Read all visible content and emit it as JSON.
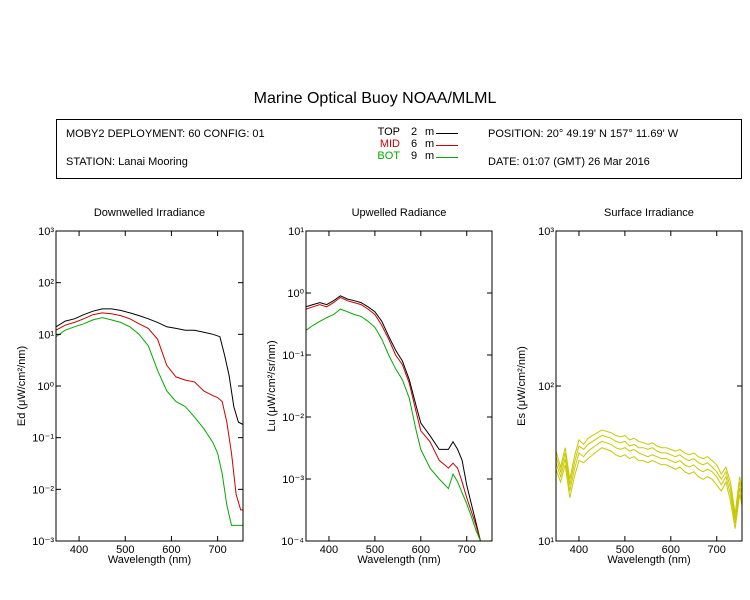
{
  "title": "Marine Optical Buoy NOAA/MLML",
  "info": {
    "deployment": "MOBY2 DEPLOYMENT: 60 CONFIG: 01",
    "station": "STATION: Lanai Mooring",
    "position": "POSITION: 20° 49.19' N   157° 11.69' W",
    "date": "DATE: 01:07 (GMT) 26 Mar 2016"
  },
  "legend": [
    {
      "label": "TOP",
      "depth": "2",
      "unit": "m",
      "color": "#000000"
    },
    {
      "label": "MID",
      "depth": "6",
      "unit": "m",
      "color": "#cc0000"
    },
    {
      "label": "BOT",
      "depth": "9",
      "unit": "m",
      "color": "#00aa00"
    }
  ],
  "chart_data": [
    {
      "type": "line",
      "title": "Downwelled Irradiance",
      "xlabel": "Wavelength (nm)",
      "ylabel": "Ed  (μW/cm²/nm)",
      "yscale": "log",
      "xlim": [
        350,
        755
      ],
      "ylim": [
        0.001,
        1000
      ],
      "xticks": [
        400,
        500,
        600,
        700
      ],
      "yticks": [
        "10⁻³",
        "10⁻²",
        "10⁻¹",
        "10⁰",
        "10¹",
        "10²",
        "10³"
      ],
      "series": [
        {
          "name": "TOP",
          "color": "#000000",
          "x": [
            350,
            370,
            390,
            410,
            430,
            450,
            470,
            490,
            510,
            530,
            550,
            570,
            590,
            610,
            630,
            650,
            670,
            690,
            705,
            715,
            725,
            735,
            745,
            755
          ],
          "y": [
            14,
            18,
            20,
            24,
            28,
            31,
            31,
            29,
            26,
            23,
            20,
            17,
            14,
            13,
            12,
            12,
            11,
            10,
            9,
            4,
            1.6,
            0.4,
            0.2,
            0.18
          ]
        },
        {
          "name": "MID",
          "color": "#cc0000",
          "x": [
            350,
            370,
            390,
            410,
            430,
            450,
            470,
            490,
            510,
            530,
            550,
            570,
            590,
            610,
            630,
            650,
            670,
            690,
            700,
            710,
            720,
            730,
            740,
            750,
            755
          ],
          "y": [
            12,
            15,
            17,
            20,
            24,
            26,
            25,
            23,
            20,
            16,
            13,
            8,
            2.5,
            1.5,
            1.3,
            1.2,
            0.8,
            0.65,
            0.6,
            0.5,
            0.2,
            0.05,
            0.008,
            0.004,
            0.004
          ]
        },
        {
          "name": "BOT",
          "color": "#00aa00",
          "x": [
            350,
            370,
            390,
            410,
            430,
            450,
            470,
            490,
            510,
            530,
            550,
            570,
            590,
            610,
            630,
            650,
            670,
            690,
            700,
            710,
            720,
            730,
            740,
            750,
            755
          ],
          "y": [
            9,
            12,
            14,
            16,
            19,
            21,
            19,
            17,
            14,
            10,
            6,
            2,
            0.8,
            0.5,
            0.4,
            0.25,
            0.15,
            0.08,
            0.05,
            0.02,
            0.005,
            0.002,
            0.002,
            0.002,
            0.002
          ]
        }
      ]
    },
    {
      "type": "line",
      "title": "Upwelled Radiance",
      "xlabel": "Wavelength (nm)",
      "ylabel": "Lu  (μW/cm²/sr/nm)",
      "yscale": "log",
      "xlim": [
        350,
        755
      ],
      "ylim": [
        0.0001,
        10
      ],
      "xticks": [
        400,
        500,
        600,
        700
      ],
      "yticks": [
        "10⁻⁴",
        "10⁻³",
        "10⁻²",
        "10⁻¹",
        "10⁰",
        "10¹"
      ],
      "series": [
        {
          "name": "TOP",
          "color": "#000000",
          "x": [
            350,
            365,
            380,
            395,
            410,
            425,
            440,
            455,
            470,
            485,
            500,
            515,
            530,
            545,
            560,
            575,
            590,
            600,
            620,
            640,
            660,
            670,
            680,
            690,
            700,
            710,
            720,
            730,
            740
          ],
          "y": [
            0.6,
            0.65,
            0.7,
            0.65,
            0.75,
            0.9,
            0.8,
            0.75,
            0.7,
            0.6,
            0.5,
            0.35,
            0.2,
            0.12,
            0.08,
            0.04,
            0.015,
            0.008,
            0.005,
            0.003,
            0.003,
            0.004,
            0.003,
            0.002,
            0.0008,
            0.0004,
            0.0002,
            0.0001,
            0.0001
          ]
        },
        {
          "name": "MID",
          "color": "#cc0000",
          "x": [
            350,
            365,
            380,
            395,
            410,
            425,
            440,
            455,
            470,
            485,
            500,
            515,
            530,
            545,
            560,
            575,
            590,
            600,
            620,
            640,
            660,
            670,
            680,
            690,
            700,
            710,
            720,
            730,
            740
          ],
          "y": [
            0.55,
            0.6,
            0.65,
            0.6,
            0.7,
            0.85,
            0.75,
            0.7,
            0.65,
            0.55,
            0.45,
            0.3,
            0.18,
            0.1,
            0.07,
            0.035,
            0.012,
            0.006,
            0.004,
            0.002,
            0.0015,
            0.0018,
            0.0015,
            0.0009,
            0.0005,
            0.0003,
            0.00018,
            0.0001,
            0.0001
          ]
        },
        {
          "name": "BOT",
          "color": "#00aa00",
          "x": [
            350,
            365,
            380,
            395,
            410,
            425,
            440,
            455,
            470,
            485,
            500,
            515,
            530,
            545,
            560,
            575,
            590,
            600,
            620,
            640,
            660,
            670,
            680,
            690,
            700,
            710,
            720,
            730,
            740
          ],
          "y": [
            0.25,
            0.3,
            0.35,
            0.4,
            0.45,
            0.55,
            0.5,
            0.45,
            0.42,
            0.35,
            0.28,
            0.18,
            0.1,
            0.06,
            0.04,
            0.02,
            0.006,
            0.003,
            0.0015,
            0.001,
            0.0007,
            0.0012,
            0.0009,
            0.0006,
            0.0004,
            0.00025,
            0.00015,
            0.0001,
            0.0001
          ]
        }
      ]
    },
    {
      "type": "line",
      "title": "Surface Irradiance",
      "xlabel": "Wavelength (nm)",
      "ylabel": "Es  (μW/cm²/nm)",
      "yscale": "log",
      "xlim": [
        350,
        755
      ],
      "ylim": [
        10,
        1000
      ],
      "xticks": [
        400,
        500,
        600,
        700
      ],
      "yticks": [
        "10¹",
        "10²",
        "10³"
      ],
      "series": [
        {
          "color": "#c8c800",
          "x": [
            350,
            360,
            370,
            380,
            390,
            400,
            410,
            420,
            430,
            440,
            450,
            460,
            470,
            480,
            490,
            500,
            510,
            520,
            530,
            540,
            550,
            560,
            570,
            580,
            590,
            600,
            610,
            620,
            630,
            640,
            650,
            660,
            670,
            680,
            690,
            700,
            710,
            720,
            730,
            740,
            750,
            755
          ],
          "y": [
            38,
            30,
            40,
            25,
            35,
            45,
            42,
            46,
            48,
            50,
            52,
            51,
            50,
            48,
            47,
            48,
            45,
            46,
            44,
            43,
            42,
            43,
            41,
            40,
            40,
            39,
            38,
            39,
            37,
            36,
            37,
            35,
            34,
            35,
            33,
            31,
            27,
            30,
            24,
            15,
            26,
            22
          ]
        },
        {
          "color": "#c8c800",
          "x": [
            350,
            360,
            370,
            380,
            390,
            400,
            410,
            420,
            430,
            440,
            450,
            460,
            470,
            480,
            490,
            500,
            510,
            520,
            530,
            540,
            550,
            560,
            570,
            580,
            590,
            600,
            610,
            620,
            630,
            640,
            650,
            660,
            670,
            680,
            690,
            700,
            710,
            720,
            730,
            740,
            750,
            755
          ],
          "y": [
            35,
            28,
            37,
            23,
            32,
            41,
            39,
            42,
            44,
            46,
            48,
            47,
            46,
            44,
            43,
            44,
            41,
            42,
            40,
            40,
            39,
            40,
            38,
            37,
            37,
            36,
            35,
            36,
            34,
            33,
            34,
            32,
            31,
            32,
            30,
            28,
            25,
            28,
            22,
            14,
            24,
            20
          ]
        },
        {
          "color": "#c8c800",
          "x": [
            350,
            360,
            370,
            380,
            390,
            400,
            410,
            420,
            430,
            440,
            450,
            460,
            470,
            480,
            490,
            500,
            510,
            520,
            530,
            540,
            550,
            560,
            570,
            580,
            590,
            600,
            610,
            620,
            630,
            640,
            650,
            660,
            670,
            680,
            690,
            700,
            710,
            720,
            730,
            740,
            750,
            755
          ],
          "y": [
            32,
            26,
            34,
            21,
            29,
            37,
            35,
            38,
            40,
            42,
            44,
            43,
            42,
            40,
            39,
            40,
            38,
            39,
            37,
            36,
            35,
            36,
            35,
            34,
            34,
            33,
            32,
            33,
            31,
            30,
            31,
            29,
            28,
            29,
            28,
            26,
            23,
            26,
            20,
            13,
            22,
            18
          ]
        },
        {
          "color": "#c8c800",
          "x": [
            350,
            360,
            370,
            380,
            390,
            400,
            410,
            420,
            430,
            440,
            450,
            460,
            470,
            480,
            490,
            500,
            510,
            520,
            530,
            540,
            550,
            560,
            570,
            580,
            590,
            600,
            610,
            620,
            630,
            640,
            650,
            660,
            670,
            680,
            690,
            700,
            710,
            720,
            730,
            740,
            750,
            755
          ],
          "y": [
            29,
            24,
            31,
            19,
            26,
            33,
            32,
            34,
            36,
            38,
            40,
            39,
            38,
            36,
            35,
            36,
            34,
            35,
            33,
            33,
            32,
            33,
            32,
            31,
            31,
            30,
            29,
            30,
            28,
            27,
            28,
            26,
            25,
            26,
            25,
            23,
            21,
            24,
            18,
            12,
            20,
            17
          ]
        }
      ]
    }
  ]
}
